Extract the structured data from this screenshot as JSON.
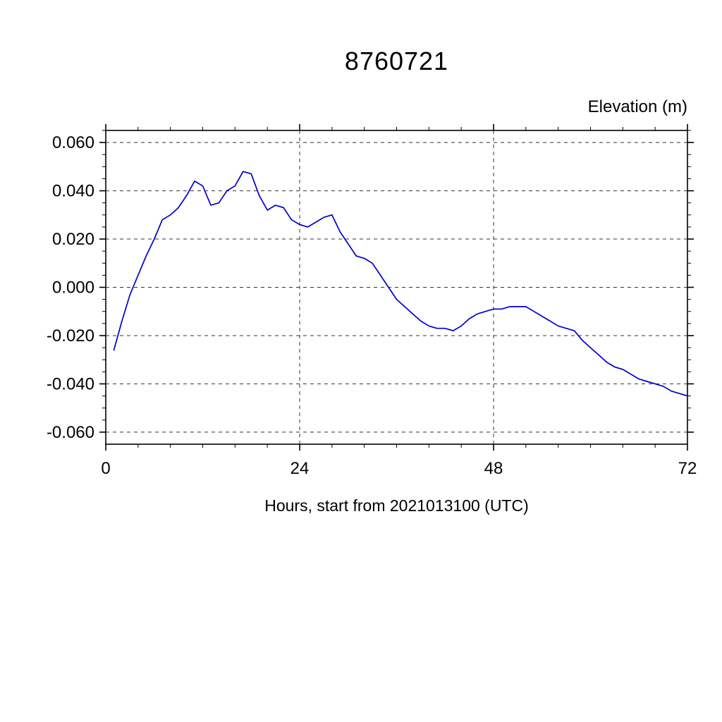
{
  "chart_data": {
    "type": "line",
    "title": "8760721",
    "ylabel": "Elevation (m)",
    "xlabel": "Hours, start from 2021013100 (UTC)",
    "xlim": [
      0,
      72
    ],
    "ylim": [
      -0.065,
      0.065
    ],
    "grid": true,
    "legend": "none",
    "line_color": "#0000cc",
    "xticks": {
      "major": [
        0,
        24,
        48,
        72
      ],
      "major_labels": [
        "0",
        "24",
        "48",
        "72"
      ],
      "minor_step": 4
    },
    "yticks": {
      "major": [
        -0.06,
        -0.04,
        -0.02,
        0.0,
        0.02,
        0.04,
        0.06
      ],
      "major_labels": [
        "-0.060",
        "-0.040",
        "-0.020",
        "0.000",
        "0.020",
        "0.040",
        "0.060"
      ],
      "minor_step": 0.005
    },
    "series": [
      {
        "name": "elevation",
        "x_start": 1,
        "x_step": 1,
        "y": [
          -0.026,
          -0.014,
          -0.003,
          0.005,
          0.013,
          0.02,
          0.028,
          0.03,
          0.033,
          0.038,
          0.044,
          0.042,
          0.034,
          0.035,
          0.04,
          0.042,
          0.048,
          0.047,
          0.038,
          0.032,
          0.034,
          0.033,
          0.028,
          0.026,
          0.025,
          0.027,
          0.029,
          0.03,
          0.023,
          0.018,
          0.013,
          0.012,
          0.01,
          0.005,
          0.0,
          -0.005,
          -0.008,
          -0.011,
          -0.014,
          -0.016,
          -0.017,
          -0.017,
          -0.018,
          -0.016,
          -0.013,
          -0.011,
          -0.01,
          -0.009,
          -0.009,
          -0.008,
          -0.008,
          -0.008,
          -0.01,
          -0.012,
          -0.014,
          -0.016,
          -0.017,
          -0.018,
          -0.022,
          -0.025,
          -0.028,
          -0.031,
          -0.033,
          -0.034,
          -0.036,
          -0.038,
          -0.039,
          -0.04,
          -0.041,
          -0.043,
          -0.044,
          -0.045
        ]
      }
    ]
  }
}
